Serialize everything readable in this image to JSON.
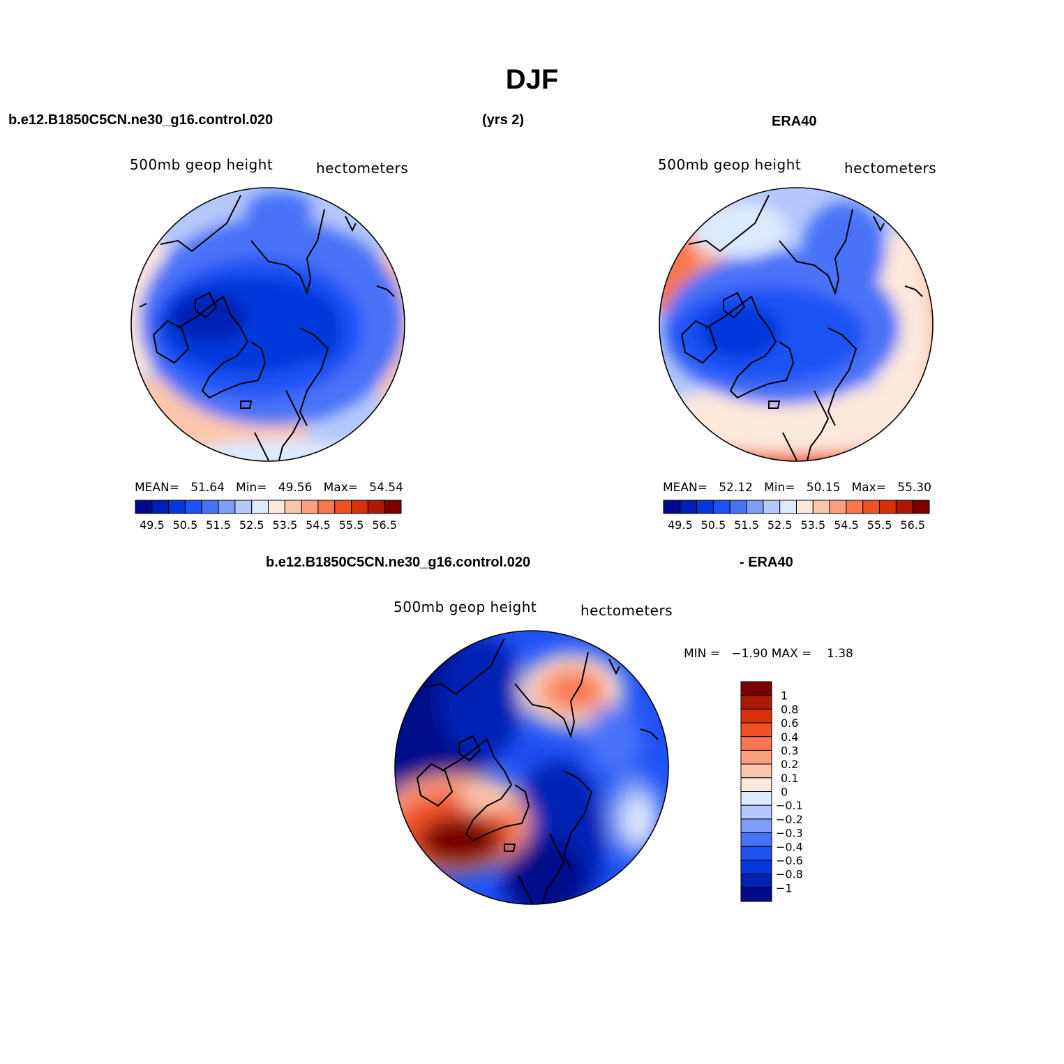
{
  "title": "DJF",
  "top_left_header": "b.e12.B1850C5CN.ne30_g16.control.020",
  "top_center_header": "(yrs 2)",
  "top_right_header": "ERA40",
  "bottom_header_left": "b.e12.B1850C5CN.ne30_g16.control.020",
  "bottom_header_right": "- ERA40",
  "panels": [
    {
      "variable": "500mb  geop  height",
      "units": "hectometers",
      "stats": {
        "mean_label": "MEAN=",
        "mean": "51.64",
        "min_label": "Min=",
        "min": "49.56",
        "max_label": "Max=",
        "max": "54.54"
      }
    },
    {
      "variable": "500mb  geop  height",
      "units": "hectometers",
      "stats": {
        "mean_label": "MEAN=",
        "mean": "52.12",
        "min_label": "Min=",
        "min": "50.15",
        "max_label": "Max=",
        "max": "55.30"
      }
    },
    {
      "variable": "500mb  geop  height",
      "units": "hectometers",
      "stats": {
        "min_label": "MIN =",
        "min": "−1.90",
        "max_label": "MAX =",
        "max": "1.38"
      }
    }
  ],
  "colorbar_main": {
    "colors": [
      "#000a8a",
      "#0020b4",
      "#0538dc",
      "#1f52f5",
      "#4a72f7",
      "#7f9cf8",
      "#b4c8fb",
      "#dde9fe",
      "#fde8dc",
      "#fcc6ad",
      "#fba07f",
      "#f8774f",
      "#ee5226",
      "#d5310a",
      "#aa1a04",
      "#7a0000"
    ],
    "tick_labels": [
      "49.5",
      "50.5",
      "51.5",
      "52.5",
      "53.5",
      "54.5",
      "55.5",
      "56.5"
    ]
  },
  "colorbar_diff": {
    "colors": [
      "#000a8a",
      "#0020b4",
      "#0538dc",
      "#1f52f5",
      "#4a72f7",
      "#7f9cf8",
      "#b4c8fb",
      "#dde9fe",
      "#fde8dc",
      "#fcc6ad",
      "#fba07f",
      "#f8774f",
      "#ee5226",
      "#d5310a",
      "#aa1a04",
      "#7a0000"
    ],
    "tick_labels": [
      "1",
      "0.8",
      "0.6",
      "0.4",
      "0.3",
      "0.2",
      "0.1",
      "0",
      "−0.1",
      "−0.2",
      "−0.3",
      "−0.4",
      "−0.6",
      "−0.8",
      "−1"
    ]
  }
}
